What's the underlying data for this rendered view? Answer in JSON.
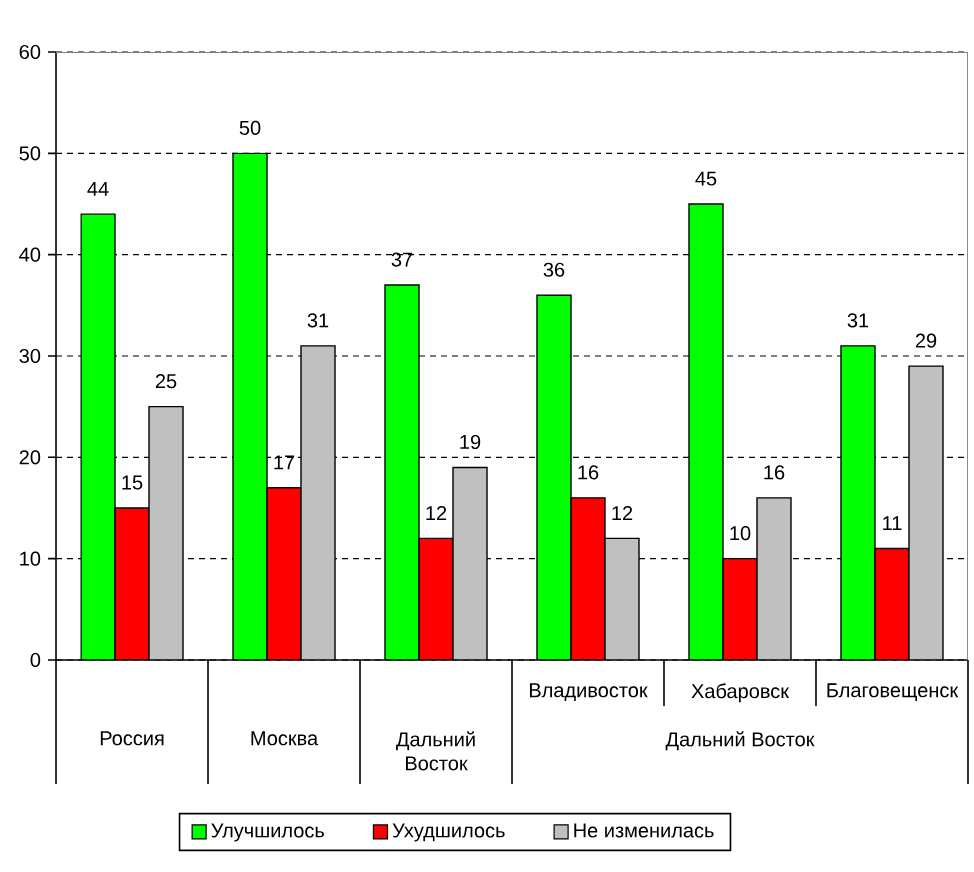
{
  "chart_data": {
    "type": "bar",
    "categories": [
      "Россия",
      "Москва",
      "Дальний Восток",
      "Владивосток",
      "Хабаровск",
      "Благовещенск"
    ],
    "series": [
      {
        "name": "Улучшилось",
        "color": "#00ff00",
        "values": [
          44,
          50,
          37,
          36,
          45,
          31
        ]
      },
      {
        "name": "Ухудшилось",
        "color": "#ff0000",
        "values": [
          15,
          17,
          12,
          16,
          10,
          11
        ]
      },
      {
        "name": "Не изменилась",
        "color": "#c0c0c0",
        "values": [
          25,
          31,
          19,
          12,
          16,
          29
        ]
      }
    ],
    "ylim": [
      0,
      60
    ],
    "yticks": [
      0,
      10,
      20,
      30,
      40,
      50,
      60
    ],
    "grid": "y",
    "legend": "bottom",
    "data_labels": true,
    "annotations": [
      "Дальний Восток"
    ]
  }
}
